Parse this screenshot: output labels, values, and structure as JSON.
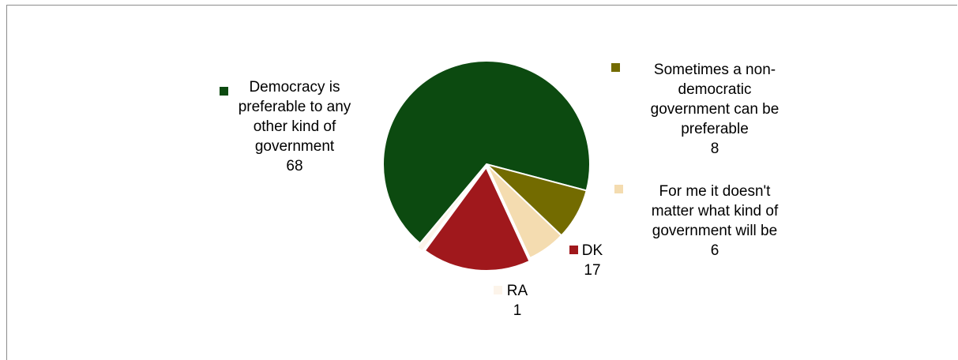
{
  "chart_data": {
    "type": "pie",
    "slices": [
      {
        "label_lines": [
          "Democracy is",
          "preferable to any",
          "other kind of",
          "government"
        ],
        "value": 68,
        "color": "#0c4a10"
      },
      {
        "label_lines": [
          "Sometimes a non-",
          "democratic",
          "government can be",
          "preferable"
        ],
        "value": 8,
        "color": "#736b00"
      },
      {
        "label_lines": [
          "For me it doesn't",
          "matter what kind of",
          "government will be"
        ],
        "value": 6,
        "color": "#f4dcb0"
      },
      {
        "label_lines": [
          "DK"
        ],
        "value": 17,
        "color": "#a0181c"
      },
      {
        "label_lines": [
          "RA"
        ],
        "value": 1,
        "color": "#fcf4ea"
      }
    ]
  }
}
